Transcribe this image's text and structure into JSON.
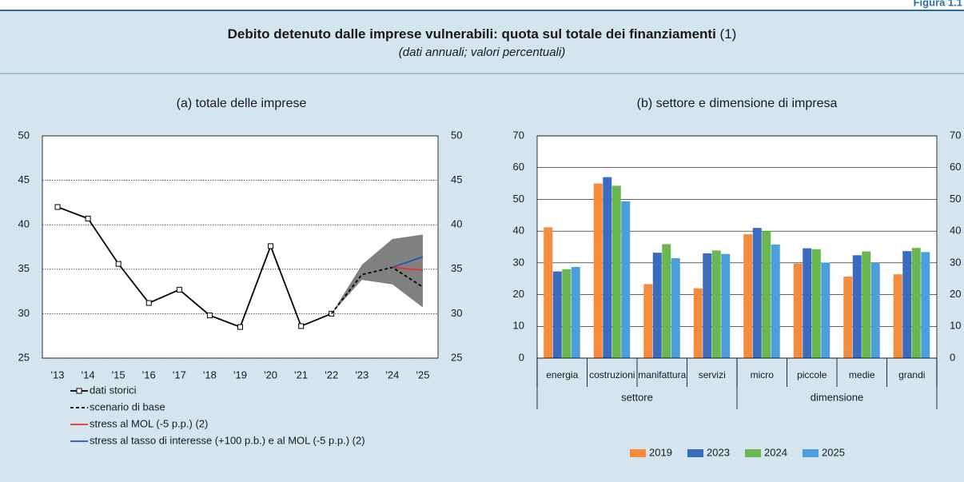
{
  "figure_label": "Figura 1.1",
  "title": "Debito detenuto dalle imprese vulnerabili: quota sul totale dei finanziamenti",
  "title_note": "(1)",
  "subtitle": "(dati annuali; valori percentuali)",
  "chart_data": [
    {
      "type": "line",
      "title": "(a) totale delle imprese",
      "categories": [
        "'13",
        "'14",
        "'15",
        "'16",
        "'17",
        "'18",
        "'19",
        "'20",
        "'21",
        "'22",
        "'23",
        "'24",
        "'25"
      ],
      "range": {
        "color": "#808080",
        "lower": [
          null,
          null,
          null,
          null,
          null,
          null,
          null,
          null,
          null,
          30,
          33.8,
          33.3,
          30.7
        ],
        "upper": [
          null,
          null,
          null,
          null,
          null,
          null,
          null,
          null,
          null,
          30,
          35.5,
          38.4,
          38.9
        ]
      },
      "series": [
        {
          "name": "dati storici",
          "color": "#000000",
          "marker": "square",
          "dashed": false,
          "values": [
            42,
            40.7,
            35.6,
            31.2,
            32.7,
            29.8,
            28.5,
            37.6,
            28.6,
            30,
            null,
            null,
            null
          ]
        },
        {
          "name": "scenario di base",
          "color": "#000000",
          "dashed": true,
          "values": [
            null,
            null,
            null,
            null,
            null,
            null,
            null,
            null,
            null,
            30,
            34.4,
            35.2,
            33
          ]
        },
        {
          "name": "stress al MOL (-5 p.p.) (2)",
          "color": "#e8312a",
          "dashed": false,
          "values": [
            null,
            null,
            null,
            null,
            null,
            null,
            null,
            null,
            null,
            null,
            null,
            35.2,
            34.9
          ]
        },
        {
          "name": "stress al tasso di interesse (+100 p.b.) e al MOL (-5 p.p.) (2)",
          "color": "#2257b5",
          "dashed": false,
          "values": [
            null,
            null,
            null,
            null,
            null,
            null,
            null,
            null,
            null,
            null,
            null,
            35.2,
            36.4
          ]
        }
      ],
      "ylim": [
        25,
        50
      ],
      "yticks": [
        25,
        30,
        35,
        40,
        45,
        50
      ],
      "y2lim": [
        25,
        50
      ],
      "y2ticks": [
        25,
        30,
        35,
        40,
        45,
        50
      ],
      "grid": "dotted",
      "legend": "bottom-left"
    },
    {
      "type": "bar",
      "title": "(b) settore e dimensione di impresa",
      "categories": [
        "energia",
        "costruzioni",
        "manifattura",
        "servizi",
        "micro",
        "piccole",
        "medie",
        "grandi"
      ],
      "groups": [
        {
          "label": "settore",
          "count": 4
        },
        {
          "label": "dimensione",
          "count": 4
        }
      ],
      "series": [
        {
          "name": "2019",
          "color": "#f58b3c",
          "values": [
            41.2,
            55,
            23.3,
            22,
            39,
            29.8,
            25.7,
            26.4
          ]
        },
        {
          "name": "2023",
          "color": "#3a6bbf",
          "values": [
            27.3,
            57,
            33.2,
            33,
            41,
            34.6,
            32.4,
            33.7
          ]
        },
        {
          "name": "2024",
          "color": "#6ab650",
          "values": [
            28,
            54.3,
            35.9,
            33.9,
            40,
            34.3,
            33.6,
            34.7
          ]
        },
        {
          "name": "2025",
          "color": "#4d9fdb",
          "values": [
            28.7,
            49.4,
            31.5,
            32.8,
            35.8,
            30.1,
            30,
            33.4
          ]
        }
      ],
      "ylim": [
        0,
        70
      ],
      "yticks": [
        0,
        10,
        20,
        30,
        40,
        50,
        60,
        70
      ],
      "y2lim": [
        0,
        70
      ],
      "y2ticks": [
        0,
        10,
        20,
        30,
        40,
        50,
        60,
        70
      ],
      "grid": "solid",
      "legend": "bottom"
    }
  ]
}
